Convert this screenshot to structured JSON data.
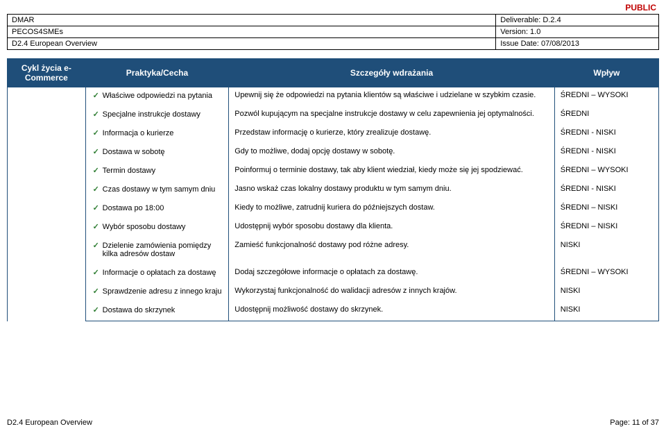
{
  "classification": "PUBLIC",
  "header": {
    "rows": [
      {
        "left": "DMAR",
        "right": "Deliverable: D.2.4"
      },
      {
        "left": "PECOS4SMEs",
        "right": "Version: 1.0"
      },
      {
        "left": "D2.4 European Overview",
        "right": "Issue Date: 07/08/2013"
      }
    ]
  },
  "colors": {
    "header_bg": "#1f4e79",
    "header_fg": "#ffffff",
    "classification": "#c00000",
    "check": "#2e7d32"
  },
  "main": {
    "columns": {
      "cycle": "Cykl życia e-Commerce",
      "practice": "Praktyka/Cecha",
      "detail": "Szczegóły wdrażania",
      "impact": "Wpływ"
    },
    "rows": [
      {
        "practice": "Właściwe odpowiedzi na pytania",
        "detail": "Upewnij się że odpowiedzi na pytania klientów są właściwe i udzielane w szybkim czasie.",
        "impact": "ŚREDNI – WYSOKI"
      },
      {
        "practice": "Specjalne instrukcje dostawy",
        "detail": "Pozwól kupującym na specjalne instrukcje dostawy w celu zapewnienia jej optymalności.",
        "impact": "ŚREDNI"
      },
      {
        "practice": "Informacja o kurierze",
        "detail": "Przedstaw informację o kurierze, który zrealizuje dostawę.",
        "impact": "ŚREDNI - NISKI"
      },
      {
        "practice": "Dostawa w sobotę",
        "detail": "Gdy to możliwe, dodaj opcję dostawy w sobotę.",
        "impact": "ŚREDNI - NISKI"
      },
      {
        "practice": "Termin dostawy",
        "detail": "Poinformuj o terminie dostawy, tak aby klient wiedział, kiedy może się jej spodziewać.",
        "impact": "ŚREDNI – WYSOKI"
      },
      {
        "practice": "Czas dostawy w tym samym dniu",
        "detail": "Jasno wskaż czas lokalny dostawy produktu w tym samym dniu.",
        "impact": "ŚREDNI  - NISKI"
      },
      {
        "practice": "Dostawa po 18:00",
        "detail": "Kiedy to możliwe, zatrudnij kuriera do późniejszych dostaw.",
        "impact": "ŚREDNI – NISKI"
      },
      {
        "practice": "Wybór sposobu dostawy",
        "detail": "Udostępnij wybór sposobu dostawy dla klienta.",
        "impact": "ŚREDNI – NISKI"
      },
      {
        "practice": "Dzielenie zamówienia pomiędzy kilka adresów dostaw",
        "detail": "Zamieść funkcjonalność dostawy pod różne adresy.",
        "impact": "NISKI"
      },
      {
        "practice": "Informacje o opłatach za dostawę",
        "detail": "Dodaj szczegółowe informacje o opłatach za dostawę.",
        "impact": "ŚREDNI – WYSOKI"
      },
      {
        "practice": "Sprawdzenie adresu z innego kraju",
        "detail": "Wykorzystaj funkcjonalność do walidacji adresów z innych krajów.",
        "impact": "NISKI"
      },
      {
        "practice": "Dostawa do skrzynek",
        "detail": "Udostępnij możliwość dostawy do skrzynek.",
        "impact": "NISKI"
      }
    ]
  },
  "footer": {
    "left": "D2.4 European Overview",
    "right": "Page: 11 of 37"
  }
}
